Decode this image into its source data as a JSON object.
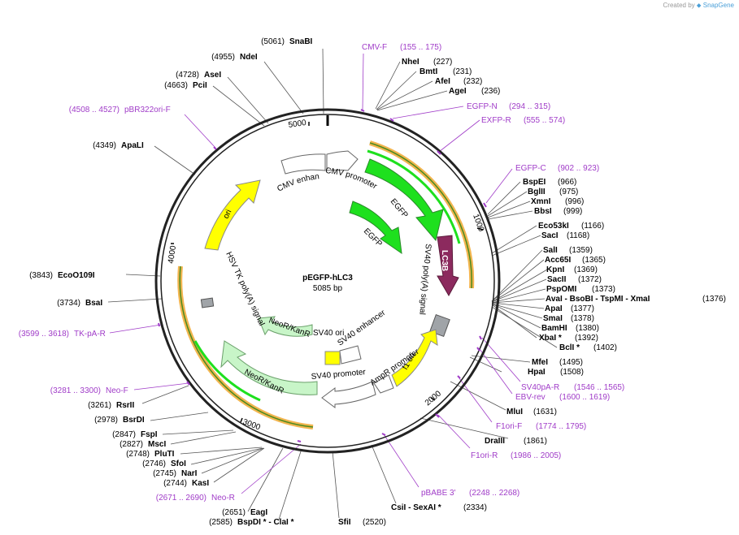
{
  "header": {
    "created_by": "Created by",
    "brand": "SnapGene"
  },
  "plasmid": {
    "name": "pEGFP-hLC3",
    "length": "5085 bp"
  },
  "ticks": [
    "1000",
    "2000",
    "3000",
    "4000",
    "5000"
  ],
  "features": {
    "cmv_enhancer": "CMV enhancer",
    "cmv_promoter": "CMV promoter",
    "egfp": "EGFP",
    "egfp_inner": "EGFP",
    "lc3b": "LC3B",
    "sv40_polya": "SV40 poly(A) signal",
    "f1_ori": "f1 ori",
    "ampr_promoter": "AmpR promoter",
    "sv40_ori": "SV40 ori",
    "sv40_enhancer": "SV40 enhancer",
    "sv40_promoter": "SV40 promoter",
    "neokanr": "NeoR/KanR",
    "neokanr_inner": "NeoR/KanR",
    "hsv_tk": "HSV TK poly(A) signal",
    "ori": "ori"
  },
  "sites": [
    {
      "name": "SnaBI",
      "pos": "(5061)"
    },
    {
      "name": "NdeI",
      "pos": "(4955)"
    },
    {
      "name": "AseI",
      "pos": "(4728)"
    },
    {
      "name": "PciI",
      "pos": "(4663)"
    },
    {
      "name": "ApaLI",
      "pos": "(4349)"
    },
    {
      "name": "EcoO109I",
      "pos": "(3843)"
    },
    {
      "name": "BsaI",
      "pos": "(3734)"
    },
    {
      "name": "RsrII",
      "pos": "(3261)"
    },
    {
      "name": "BsrDI",
      "pos": "(2978)"
    },
    {
      "name": "FspI",
      "pos": "(2847)"
    },
    {
      "name": "MscI",
      "pos": "(2827)"
    },
    {
      "name": "PluTI",
      "pos": "(2748)"
    },
    {
      "name": "SfoI",
      "pos": "(2746)"
    },
    {
      "name": "NarI",
      "pos": "(2745)"
    },
    {
      "name": "KasI",
      "pos": "(2744)"
    },
    {
      "name": "EagI",
      "pos": "(2651)"
    },
    {
      "name": "BspDI *  -  ClaI *",
      "pos": "(2585)"
    },
    {
      "name": "SfiI",
      "pos": "(2520)"
    },
    {
      "name": "CsiI  -  SexAI *",
      "pos": "(2334)"
    },
    {
      "name": "DraIII",
      "pos": "(1861)"
    },
    {
      "name": "MluI",
      "pos": "(1631)"
    },
    {
      "name": "HpaI",
      "pos": "(1508)"
    },
    {
      "name": "MfeI",
      "pos": "(1495)"
    },
    {
      "name": "BclI *",
      "pos": "(1402)"
    },
    {
      "name": "XbaI *",
      "pos": "(1392)"
    },
    {
      "name": "BamHI",
      "pos": "(1380)"
    },
    {
      "name": "SmaI",
      "pos": "(1378)"
    },
    {
      "name": "ApaI",
      "pos": "(1377)"
    },
    {
      "name": "AvaI  -  BsoBI  -  TspMI  -  XmaI",
      "pos": "(1376)"
    },
    {
      "name": "PspOMI",
      "pos": "(1373)"
    },
    {
      "name": "SacII",
      "pos": "(1372)"
    },
    {
      "name": "KpnI",
      "pos": "(1369)"
    },
    {
      "name": "Acc65I",
      "pos": "(1365)"
    },
    {
      "name": "SalI",
      "pos": "(1359)"
    },
    {
      "name": "SacI",
      "pos": "(1168)"
    },
    {
      "name": "Eco53kI",
      "pos": "(1166)"
    },
    {
      "name": "BbsI",
      "pos": "(999)"
    },
    {
      "name": "XmnI",
      "pos": "(996)"
    },
    {
      "name": "BglII",
      "pos": "(975)"
    },
    {
      "name": "BspEI",
      "pos": "(966)"
    },
    {
      "name": "AgeI",
      "pos": "(236)"
    },
    {
      "name": "AfeI",
      "pos": "(232)"
    },
    {
      "name": "BmtI",
      "pos": "(231)"
    },
    {
      "name": "NheI",
      "pos": "(227)"
    }
  ],
  "primers": [
    {
      "name": "CMV-F",
      "pos": "(155 .. 175)"
    },
    {
      "name": "EGFP-N",
      "pos": "(294 .. 315)"
    },
    {
      "name": "EXFP-R",
      "pos": "(555 .. 574)"
    },
    {
      "name": "EGFP-C",
      "pos": "(902 .. 923)"
    },
    {
      "name": "SV40pA-R",
      "pos": "(1546 .. 1565)"
    },
    {
      "name": "EBV-rev",
      "pos": "(1600 .. 1619)"
    },
    {
      "name": "F1ori-F",
      "pos": "(1774 .. 1795)"
    },
    {
      "name": "F1ori-R",
      "pos": "(1986 .. 2005)"
    },
    {
      "name": "pBABE 3'",
      "pos": "(2248 .. 2268)"
    },
    {
      "name": "Neo-R",
      "pos": "(2671 .. 2690)"
    },
    {
      "name": "Neo-F",
      "pos": "(3281 .. 3300)"
    },
    {
      "name": "TK-pA-R",
      "pos": "(3599 .. 3618)"
    },
    {
      "name": "pBR322ori-F",
      "pos": "(4508 .. 4527)"
    }
  ],
  "colors": {
    "backbone": "#222222",
    "primer": "#a03cc8",
    "green": "#1ee01e",
    "yellow": "#ffff00",
    "lc3b": "#8c2a5e",
    "light_green": "#c8f5c8",
    "white": "#ffffff",
    "gray": "#a0a4a8",
    "orange": "#f0a830"
  }
}
